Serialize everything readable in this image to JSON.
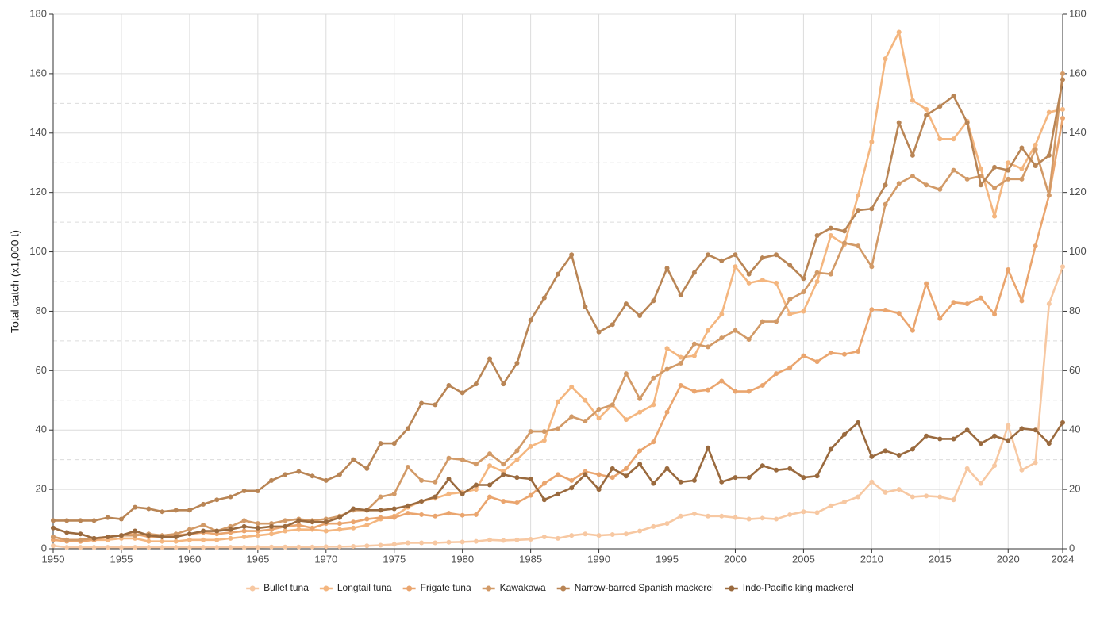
{
  "chart_data": {
    "type": "line",
    "y_label": "Total catch (x1,000 t)",
    "x": [
      1950,
      1951,
      1952,
      1953,
      1954,
      1955,
      1956,
      1957,
      1958,
      1959,
      1960,
      1961,
      1962,
      1963,
      1964,
      1965,
      1966,
      1967,
      1968,
      1969,
      1970,
      1971,
      1972,
      1973,
      1974,
      1975,
      1976,
      1977,
      1978,
      1979,
      1980,
      1981,
      1982,
      1983,
      1984,
      1985,
      1986,
      1987,
      1988,
      1989,
      1990,
      1991,
      1992,
      1993,
      1994,
      1995,
      1996,
      1997,
      1998,
      1999,
      2000,
      2001,
      2002,
      2003,
      2004,
      2005,
      2006,
      2007,
      2008,
      2009,
      2010,
      2011,
      2012,
      2013,
      2014,
      2015,
      2016,
      2017,
      2018,
      2019,
      2020,
      2021,
      2022,
      2023,
      2024
    ],
    "xlim": [
      1950,
      2024
    ],
    "xticks": [
      1950,
      1955,
      1960,
      1965,
      1970,
      1975,
      1980,
      1985,
      1990,
      1995,
      2000,
      2005,
      2010,
      2015,
      2020,
      2024
    ],
    "ylim": [
      0,
      180
    ],
    "yticks": [
      0,
      20,
      40,
      60,
      80,
      100,
      120,
      140,
      160,
      180
    ],
    "grid": true,
    "legend": "bottom",
    "series": [
      {
        "name": "Bullet tuna",
        "color": "#f7c8a2",
        "values": [
          1,
          0.5,
          0.5,
          0.5,
          0.5,
          0.5,
          0.5,
          0.5,
          0.5,
          0.5,
          0.5,
          0.5,
          0.5,
          0.5,
          0.5,
          0.5,
          0.6,
          0.6,
          0.6,
          0.6,
          0.7,
          0.7,
          0.8,
          1,
          1.2,
          1.5,
          2,
          2,
          2,
          2.2,
          2.3,
          2.5,
          3,
          2.8,
          3,
          3.2,
          4,
          3.5,
          4.5,
          5,
          4.5,
          4.8,
          5,
          6,
          7.5,
          8.5,
          11,
          11.8,
          11,
          11,
          10.5,
          10,
          10.3,
          10,
          11.5,
          12.5,
          12.2,
          14.5,
          15.8,
          17.5,
          22.5,
          19,
          20,
          17.5,
          17.8,
          17.5,
          16.5,
          27,
          22,
          28,
          41.5,
          26.5,
          29,
          82.5,
          95
        ]
      },
      {
        "name": "Longtail tuna",
        "color": "#f4b67f",
        "values": [
          4,
          3,
          2.5,
          3,
          3,
          3.5,
          3.5,
          2.5,
          2.5,
          2.5,
          3,
          3,
          3,
          3.5,
          4,
          4.5,
          5,
          6,
          6.5,
          6.5,
          6,
          6.5,
          7,
          8,
          10,
          11,
          14,
          16,
          17,
          18.5,
          19,
          20,
          28,
          26,
          30,
          34.5,
          36.5,
          49.5,
          54.5,
          50,
          44,
          48.5,
          43.5,
          46,
          48.5,
          67.5,
          64.5,
          65,
          73.5,
          79,
          95,
          89.5,
          90.5,
          89.5,
          79,
          80,
          90,
          105.5,
          102.5,
          119,
          137,
          165,
          174,
          151,
          148,
          138,
          138,
          144,
          128,
          112,
          130,
          128,
          136,
          147,
          148
        ]
      },
      {
        "name": "Frigate tuna",
        "color": "#eaa56e",
        "values": [
          3,
          2.5,
          2.5,
          3,
          4,
          4.5,
          5,
          4,
          4,
          4.5,
          5,
          5.5,
          5,
          5.5,
          6,
          6,
          6.5,
          7.5,
          8,
          7,
          8.5,
          8.5,
          9,
          10,
          10.5,
          10.5,
          12,
          11.5,
          11,
          12,
          11.3,
          11.5,
          17.5,
          16,
          15.5,
          18,
          22,
          25,
          23,
          26,
          25,
          24,
          27,
          33,
          36,
          46,
          55,
          53,
          53.5,
          56.5,
          53,
          53,
          55,
          59,
          61,
          65,
          63,
          66,
          65.5,
          66.5,
          80.6,
          80.4,
          79.3,
          73.5,
          89.3,
          77.5,
          83,
          82.5,
          84.5,
          79,
          94,
          83.5,
          102,
          119,
          145
        ]
      },
      {
        "name": "Kawakawa",
        "color": "#d29a67",
        "values": [
          4,
          3,
          3,
          3.5,
          4,
          4.5,
          4.5,
          5,
          4.5,
          5,
          6.5,
          8,
          6,
          7.5,
          9.5,
          8.5,
          8.5,
          9.5,
          10,
          9.5,
          10,
          11,
          13,
          13,
          17.5,
          18.5,
          27.5,
          23,
          22.5,
          30.5,
          30,
          28.5,
          32,
          28.5,
          33,
          39.5,
          39.5,
          40.5,
          44.5,
          43,
          47,
          48.5,
          59,
          50.5,
          57.5,
          60.5,
          62.5,
          69,
          68,
          71,
          73.5,
          70.5,
          76.5,
          76.5,
          84,
          86.5,
          93,
          92.5,
          103,
          102,
          95,
          116,
          123,
          125.5,
          122.5,
          121,
          127.5,
          124.5,
          125.5,
          121.5,
          124.5,
          124.5,
          134.5,
          119,
          160
        ]
      },
      {
        "name": "Narrow-barred Spanish mackerel",
        "color": "#b98555",
        "values": [
          9.5,
          9.5,
          9.5,
          9.5,
          10.5,
          10,
          14,
          13.5,
          12.5,
          13,
          13,
          15,
          16.5,
          17.5,
          19.5,
          19.5,
          23,
          25,
          26,
          24.5,
          23,
          25,
          30,
          27,
          35.5,
          35.5,
          40.5,
          49,
          48.5,
          55,
          52.5,
          55.5,
          64,
          55.5,
          62.5,
          77,
          84.5,
          92.5,
          99,
          81.5,
          73,
          75.5,
          82.5,
          78.5,
          83.5,
          94.5,
          85.5,
          93,
          99,
          97,
          99,
          92.5,
          98,
          99,
          95.5,
          91,
          105.5,
          108,
          107,
          114,
          114.5,
          122.5,
          143.5,
          132.5,
          146,
          149,
          152.5,
          143.5,
          122.5,
          128.5,
          127.5,
          135,
          129,
          132.5,
          158
        ]
      },
      {
        "name": "Indo-Pacific king mackerel",
        "color": "#9a6a3e",
        "values": [
          7,
          5.5,
          5,
          3.5,
          4,
          4.5,
          6,
          4.5,
          4,
          4,
          5,
          6,
          6,
          6.5,
          7.5,
          7,
          7.5,
          7.5,
          9.5,
          9,
          9,
          10.5,
          13.5,
          13,
          13,
          13.5,
          14.5,
          16,
          17.5,
          23.5,
          18.5,
          21.5,
          21.5,
          25,
          24,
          23.5,
          16.5,
          18.5,
          20.5,
          25,
          20,
          27,
          24.5,
          28.5,
          22,
          27,
          22.5,
          23,
          34,
          22.5,
          24,
          24,
          28,
          26.5,
          27,
          24,
          24.5,
          33.5,
          38.5,
          42.5,
          31,
          33,
          31.5,
          33.5,
          38,
          37,
          37,
          40,
          35.5,
          38,
          36.5,
          40.5,
          40,
          35.5,
          42.5
        ]
      }
    ]
  }
}
